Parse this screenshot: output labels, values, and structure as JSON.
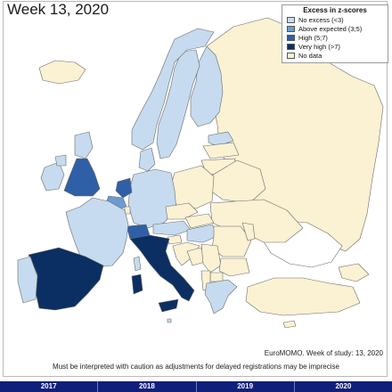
{
  "title": "Week 13, 2020",
  "legend": {
    "title": "Excess in z-scores",
    "items": [
      {
        "label": "No excess (<3)",
        "color": "#c6dbef"
      },
      {
        "label": "Above expected (3;5)",
        "color": "#6b9bd1"
      },
      {
        "label": "High (5;7)",
        "color": "#2f5fa6"
      },
      {
        "label": "Very high (>7)",
        "color": "#0b2f62"
      },
      {
        "label": "No data",
        "color": "#fbf1d3"
      }
    ]
  },
  "colors": {
    "no_excess": "#c6dbef",
    "above_expected": "#6b9bd1",
    "high": "#2f5fa6",
    "very_high": "#0b2f62",
    "no_data": "#fbf1d3",
    "not_covered": "#ffffff",
    "border": "#6a6a6a",
    "timeline": "#10207a"
  },
  "credit": "EuroMOMO. Week of study: 13, 2020",
  "caution": "Must be interpreted with caution as adjustments for delayed registrations may be imprecise",
  "timeline_years": [
    "2017",
    "2018",
    "2019",
    "2020"
  ],
  "regions": [
    {
      "name": "Iceland",
      "category": "no_data"
    },
    {
      "name": "Norway",
      "category": "no_excess"
    },
    {
      "name": "Sweden",
      "category": "no_excess"
    },
    {
      "name": "Finland",
      "category": "no_excess"
    },
    {
      "name": "Russia",
      "category": "no_data"
    },
    {
      "name": "Estonia",
      "category": "no_excess"
    },
    {
      "name": "Latvia",
      "category": "no_data"
    },
    {
      "name": "Lithuania",
      "category": "no_data"
    },
    {
      "name": "Ireland",
      "category": "no_excess"
    },
    {
      "name": "Great Britain",
      "category": "high"
    },
    {
      "name": "Northern Ireland",
      "category": "no_excess"
    },
    {
      "name": "Scotland",
      "category": "no_excess"
    },
    {
      "name": "Denmark",
      "category": "no_excess"
    },
    {
      "name": "Netherlands",
      "category": "high"
    },
    {
      "name": "Belgium",
      "category": "above_expected"
    },
    {
      "name": "Luxembourg",
      "category": "no_data"
    },
    {
      "name": "France",
      "category": "no_excess"
    },
    {
      "name": "Germany",
      "category": "no_excess"
    },
    {
      "name": "Poland",
      "category": "no_data"
    },
    {
      "name": "Belarus",
      "category": "no_data"
    },
    {
      "name": "Ukraine",
      "category": "no_data"
    },
    {
      "name": "Czechia",
      "category": "no_data"
    },
    {
      "name": "Slovakia",
      "category": "no_data"
    },
    {
      "name": "Austria",
      "category": "no_excess"
    },
    {
      "name": "Hungary",
      "category": "no_excess"
    },
    {
      "name": "Switzerland",
      "category": "high"
    },
    {
      "name": "Italy",
      "category": "very_high"
    },
    {
      "name": "Slovenia",
      "category": "no_data"
    },
    {
      "name": "Croatia",
      "category": "no_data"
    },
    {
      "name": "Bosnia",
      "category": "no_data"
    },
    {
      "name": "Serbia",
      "category": "no_data"
    },
    {
      "name": "Romania",
      "category": "no_data"
    },
    {
      "name": "Moldova",
      "category": "no_data"
    },
    {
      "name": "Bulgaria",
      "category": "no_data"
    },
    {
      "name": "Albania",
      "category": "no_data"
    },
    {
      "name": "North Macedonia",
      "category": "no_data"
    },
    {
      "name": "Greece",
      "category": "no_excess"
    },
    {
      "name": "Spain",
      "category": "very_high"
    },
    {
      "name": "Portugal",
      "category": "no_excess"
    },
    {
      "name": "Sardinia",
      "category": "very_high"
    },
    {
      "name": "Corsica",
      "category": "no_excess"
    },
    {
      "name": "Sicily",
      "category": "very_high"
    },
    {
      "name": "Malta",
      "category": "no_excess"
    },
    {
      "name": "Cyprus",
      "category": "no_data"
    },
    {
      "name": "Turkey",
      "category": "no_data"
    },
    {
      "name": "Kazakhstan",
      "category": "not_covered"
    },
    {
      "name": "Georgia",
      "category": "no_data"
    }
  ]
}
